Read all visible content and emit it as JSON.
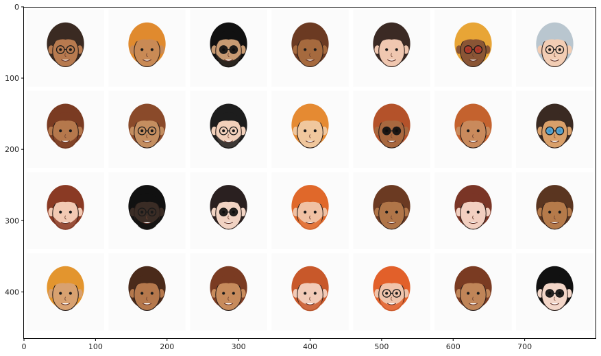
{
  "chart_data": {
    "type": "image-grid",
    "title": "",
    "xlabel": "",
    "ylabel": "",
    "xlim": [
      0,
      800
    ],
    "ylim": [
      465,
      0
    ],
    "x_ticks": [
      0,
      100,
      200,
      300,
      400,
      500,
      600,
      700
    ],
    "y_ticks": [
      0,
      100,
      200,
      300,
      400
    ],
    "grid": false,
    "rows": 4,
    "cols": 7,
    "tile_size": 112,
    "faces": [
      {
        "hair": "#3a2a22",
        "skin": "#b77a4f",
        "glasses": "clear",
        "beard": false
      },
      {
        "hair": "#e08a2e",
        "skin": "#c98a55",
        "glasses": "none",
        "beard": false
      },
      {
        "hair": "#111111",
        "skin": "#c79a72",
        "glasses": "dark",
        "beard": true
      },
      {
        "hair": "#6b3a22",
        "skin": "#a66a3e",
        "glasses": "none",
        "beard": false
      },
      {
        "hair": "#3b2a24",
        "skin": "#f0c7b0",
        "glasses": "none",
        "beard": false
      },
      {
        "hair": "#e8a536",
        "skin": "#8a5535",
        "glasses": "red",
        "beard": false
      },
      {
        "hair": "#b9c6cf",
        "skin": "#f2cdb4",
        "glasses": "clear",
        "beard": false
      },
      {
        "hair": "#7a3b22",
        "skin": "#b5784c",
        "glasses": "none",
        "beard": true
      },
      {
        "hair": "#8a4a2a",
        "skin": "#c48e60",
        "glasses": "clear",
        "beard": false
      },
      {
        "hair": "#1d1d1d",
        "skin": "#f2d0ba",
        "glasses": "clear",
        "beard": true
      },
      {
        "hair": "#e58a32",
        "skin": "#f0c79d",
        "glasses": "none",
        "beard": false
      },
      {
        "hair": "#b4522a",
        "skin": "#a8683f",
        "glasses": "dark",
        "beard": false
      },
      {
        "hair": "#c4622e",
        "skin": "#c98a5c",
        "glasses": "none",
        "beard": false
      },
      {
        "hair": "#3a2a22",
        "skin": "#d9a06a",
        "glasses": "color",
        "beard": false
      },
      {
        "hair": "#8a3a24",
        "skin": "#f2c9b3",
        "glasses": "none",
        "beard": true
      },
      {
        "hair": "#111111",
        "skin": "#3a2c25",
        "glasses": "clear",
        "beard": true
      },
      {
        "hair": "#2a2020",
        "skin": "#f1d3c3",
        "glasses": "dark",
        "beard": false
      },
      {
        "hair": "#e0682a",
        "skin": "#f0c1a3",
        "glasses": "none",
        "beard": true
      },
      {
        "hair": "#6b3a22",
        "skin": "#b07548",
        "glasses": "none",
        "beard": false
      },
      {
        "hair": "#7a3526",
        "skin": "#f2cfc0",
        "glasses": "none",
        "beard": false
      },
      {
        "hair": "#5a3520",
        "skin": "#b57a4a",
        "glasses": "none",
        "beard": false
      },
      {
        "hair": "#e3952e",
        "skin": "#d8a170",
        "glasses": "none",
        "beard": false
      },
      {
        "hair": "#4a2a1a",
        "skin": "#b5784c",
        "glasses": "none",
        "beard": false
      },
      {
        "hair": "#7a3b22",
        "skin": "#c78b5c",
        "glasses": "none",
        "beard": false
      },
      {
        "hair": "#c8582a",
        "skin": "#f2cbb8",
        "glasses": "none",
        "beard": true
      },
      {
        "hair": "#e2602a",
        "skin": "#f0c4ab",
        "glasses": "clear",
        "beard": true
      },
      {
        "hair": "#7a3b22",
        "skin": "#c08558",
        "glasses": "none",
        "beard": false
      },
      {
        "hair": "#111111",
        "skin": "#f3d6c8",
        "glasses": "dark",
        "beard": false
      }
    ]
  }
}
